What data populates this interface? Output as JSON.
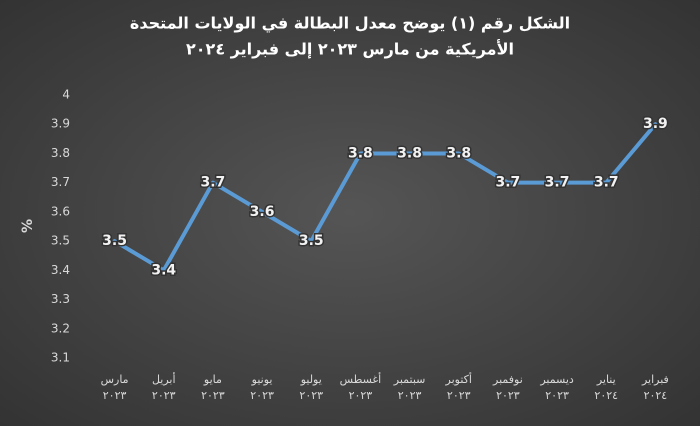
{
  "chart_data": {
    "type": "line",
    "title": [
      "الشكل رقم (١) يوضح معدل البطالة في الولايات المتحدة",
      "الأمريكية من مارس ٢٠٢٣ إلى فبراير ٢٠٢٤"
    ],
    "y_label": "%",
    "categories": [
      "مارس\n٢٠٢٣",
      "أبريل\n٢٠٢٣",
      "مايو\n٢٠٢٣",
      "يونيو\n٢٠٢٣",
      "يوليو\n٢٠٢٣",
      "أغسطس\n٢٠٢٣",
      "سبتمبر\n٢٠٢٣",
      "أكتوبر\n٢٠٢٣",
      "نوفمبر\n٢٠٢٣",
      "ديسمبر\n٢٠٢٣",
      "يناير\n٢٠٢٤",
      "فبراير\n٢٠٢٤"
    ],
    "values": [
      3.5,
      3.4,
      3.7,
      3.6,
      3.5,
      3.8,
      3.8,
      3.8,
      3.7,
      3.7,
      3.7,
      3.9
    ],
    "color": "#5b9bd5",
    "ylim": [
      3.1,
      4
    ],
    "yticks": [
      3.1,
      3.2,
      3.3,
      3.4,
      3.5,
      3.6,
      3.7,
      3.8,
      3.9,
      4
    ],
    "grid": false,
    "data_labels": true
  }
}
